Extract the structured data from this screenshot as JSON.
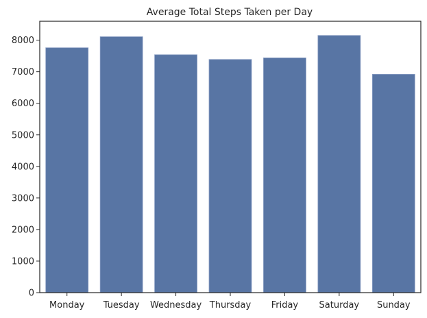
{
  "chart_data": {
    "type": "bar",
    "title": "Average Total Steps Taken per Day",
    "xlabel": "",
    "ylabel": "",
    "categories": [
      "Monday",
      "Tuesday",
      "Wednesday",
      "Thursday",
      "Friday",
      "Saturday",
      "Sunday"
    ],
    "values": [
      7760,
      8110,
      7540,
      7390,
      7440,
      8150,
      6920
    ],
    "ylim": [
      0,
      8600
    ],
    "yticks": [
      0,
      1000,
      2000,
      3000,
      4000,
      5000,
      6000,
      7000,
      8000
    ],
    "grid": false,
    "bar_color": "#5875a4",
    "bar_edge_color": "#8a9ec3"
  }
}
